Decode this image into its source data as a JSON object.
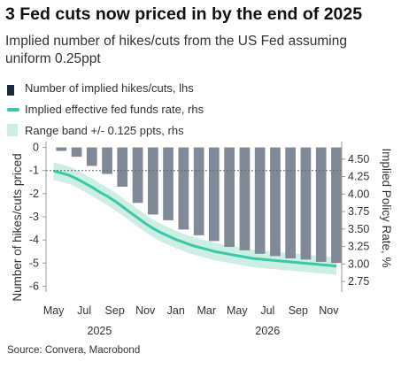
{
  "chart_data": {
    "type": "bar",
    "title": "3 Fed cuts now priced in by the end of 2025",
    "subtitle": "Implied number of hikes/cuts from the US Fed assuming uniform 0.25ppt",
    "legend": {
      "placement": "top-left",
      "entries": [
        {
          "key": "bars",
          "label": "Number of implied hikes/cuts, lhs",
          "color": "#1b2a3a"
        },
        {
          "key": "line",
          "label": "Implied effective fed funds rate, rhs",
          "color": "#39c9a6"
        },
        {
          "key": "band",
          "label": "Range band +/- 0.125 ppts, rhs",
          "color": "#cdeee3"
        }
      ]
    },
    "ylabel_left": "Number of hikes/cuts priced",
    "ylabel_right": "Implied Policy Rate, %",
    "ylim_left": [
      -6.1,
      0.1
    ],
    "ylim_right": [
      2.65,
      4.7
    ],
    "yticks_left": [
      "0",
      "-1",
      "-2",
      "-3",
      "-4",
      "-5",
      "-6"
    ],
    "yticks_right": [
      "4.50",
      "4.25",
      "4.00",
      "3.75",
      "3.50",
      "3.25",
      "3.00",
      "2.75"
    ],
    "x_range": [
      0,
      19
    ],
    "xticks": [
      {
        "pos": 0.5,
        "label": "May"
      },
      {
        "pos": 2.5,
        "label": "Jul"
      },
      {
        "pos": 4.5,
        "label": "Sep"
      },
      {
        "pos": 6.5,
        "label": "Nov"
      },
      {
        "pos": 8.5,
        "label": "Jan"
      },
      {
        "pos": 10.5,
        "label": "Mar"
      },
      {
        "pos": 12.5,
        "label": "May"
      },
      {
        "pos": 14.5,
        "label": "Jul"
      },
      {
        "pos": 16.5,
        "label": "Sep"
      },
      {
        "pos": 18.5,
        "label": "Nov"
      }
    ],
    "year_labels": [
      {
        "pos": 3.5,
        "label": "2025"
      },
      {
        "pos": 14.5,
        "label": "2026"
      }
    ],
    "bars": [
      {
        "x": 1.0,
        "value": -0.15
      },
      {
        "x": 2.0,
        "value": -0.4
      },
      {
        "x": 3.0,
        "value": -0.8
      },
      {
        "x": 4.0,
        "value": -1.15
      },
      {
        "x": 5.0,
        "value": -1.7
      },
      {
        "x": 6.0,
        "value": -2.4
      },
      {
        "x": 7.0,
        "value": -2.9
      },
      {
        "x": 8.0,
        "value": -3.15
      },
      {
        "x": 9.0,
        "value": -3.55
      },
      {
        "x": 10.0,
        "value": -3.8
      },
      {
        "x": 11.0,
        "value": -4.05
      },
      {
        "x": 12.0,
        "value": -4.3
      },
      {
        "x": 13.0,
        "value": -4.45
      },
      {
        "x": 14.0,
        "value": -4.6
      },
      {
        "x": 15.0,
        "value": -4.7
      },
      {
        "x": 16.0,
        "value": -4.8
      },
      {
        "x": 17.0,
        "value": -4.85
      },
      {
        "x": 18.0,
        "value": -4.95
      },
      {
        "x": 19.0,
        "value": -5.0
      }
    ],
    "rate_line": {
      "x": [
        0.5,
        1.0,
        1.5,
        2.0,
        2.5,
        3.0,
        3.5,
        4.0,
        4.5,
        5.0,
        5.5,
        6.0,
        6.5,
        7.0,
        7.5,
        8.0,
        8.5,
        9.0,
        9.5,
        10.0,
        10.5,
        11.0,
        11.5,
        12.0,
        12.5,
        13.0,
        13.5,
        14.0,
        14.5,
        15.0,
        15.5,
        16.0,
        16.5,
        17.0,
        17.5,
        18.0,
        18.5,
        19.0
      ],
      "y": [
        4.33,
        4.3,
        4.27,
        4.22,
        4.16,
        4.1,
        4.03,
        3.97,
        3.9,
        3.82,
        3.74,
        3.66,
        3.58,
        3.51,
        3.45,
        3.4,
        3.35,
        3.31,
        3.27,
        3.24,
        3.21,
        3.18,
        3.16,
        3.14,
        3.12,
        3.1,
        3.08,
        3.07,
        3.06,
        3.05,
        3.04,
        3.03,
        3.02,
        3.01,
        3.0,
        2.99,
        2.98,
        2.97
      ]
    },
    "band_half_width": 0.125,
    "reference_line": {
      "axis": "left",
      "value": -1,
      "style": "dashed"
    },
    "grid": false
  },
  "source": "Source: Convera, Macrobond"
}
